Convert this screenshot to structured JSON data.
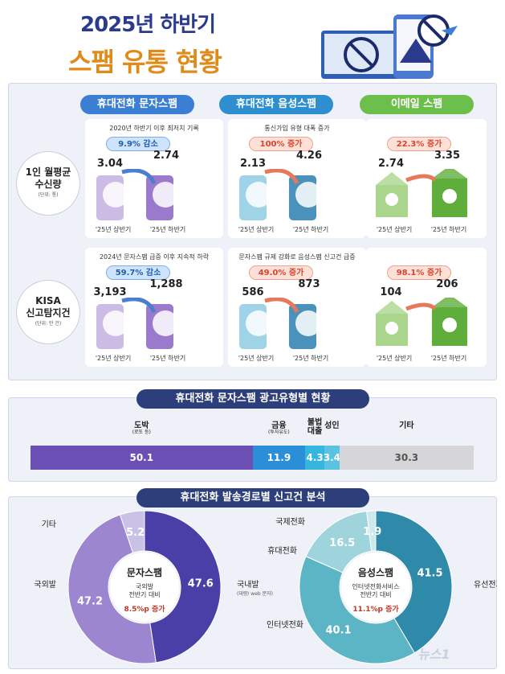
{
  "header": {
    "title_line1": "2025년 하반기",
    "title_line2": "스팸 유통 현황"
  },
  "columns": [
    {
      "label": "휴대전화 문자스팸",
      "color": "#3b7fd4"
    },
    {
      "label": "휴대전화 음성스팸",
      "color": "#2e8fd0"
    },
    {
      "label": "이메일 스팸",
      "color": "#6cbf4a"
    }
  ],
  "rows": [
    {
      "label": "1인 월평균\n수신량",
      "unit": "(단위: 통)",
      "cells": [
        {
          "subtitle": "2020년 하반기 이후 최저치 기록",
          "change": "9.9% 감소",
          "direction": "down",
          "h1": 3.04,
          "h2": 2.74
        },
        {
          "subtitle": "통신가입 유형 대폭 증가",
          "change": "100% 증가",
          "direction": "up",
          "h1": 2.13,
          "h2": 4.26
        },
        {
          "subtitle": "",
          "change": "22.3% 증가",
          "direction": "up",
          "h1": 2.74,
          "h2": 3.35
        }
      ]
    },
    {
      "label": "KISA\n신고탐지건",
      "unit": "(단위: 만 건)",
      "cells": [
        {
          "subtitle": "2024년 문자스팸 급증 이후 지속적 하락",
          "change": "59.7% 감소",
          "direction": "down",
          "h1": "3,193",
          "h2": "1,288"
        },
        {
          "subtitle": "문자스팸 규제 강화로 음성스팸 신고건 급증",
          "change": "49.0% 증가",
          "direction": "up",
          "h1": 586,
          "h2": 873
        },
        {
          "subtitle": "",
          "change": "98.1% 증가",
          "direction": "up",
          "h1": 104,
          "h2": 206
        }
      ]
    }
  ],
  "period_labels": [
    "'25년 상반기",
    "'25년 하반기"
  ],
  "section2_title": "휴대전화 문자스팸 광고유형별 현황",
  "section3_title": "휴대전화 발송경로별 신고건 분석",
  "chart_data": [
    {
      "type": "bar",
      "title": "휴대전화 문자스팸 광고유형별 현황",
      "categories": [
        {
          "name": "도박",
          "note": "(로또 등)",
          "value": 50.1,
          "color": "#6b4fb5"
        },
        {
          "name": "금융",
          "note": "(투자유도)",
          "value": 11.9,
          "color": "#2a8fd8"
        },
        {
          "name": "불법\n대출",
          "note": "",
          "value": 4.3,
          "color": "#35b6df"
        },
        {
          "name": "성인",
          "note": "",
          "value": 3.4,
          "color": "#5ac3e3"
        },
        {
          "name": "기타",
          "note": "",
          "value": 30.3,
          "color": "#d6d6d8"
        }
      ]
    },
    {
      "type": "pie",
      "center_title": "문자스팸",
      "center_text": "국외발\n전반기 대비",
      "center_highlight": "8.5%p 증가",
      "slices": [
        {
          "name": "국내발",
          "note": "(대량/ web 문자)",
          "value": 47.6,
          "color": "#4a3fa6"
        },
        {
          "name": "국외발",
          "note": "",
          "value": 47.2,
          "color": "#9b86cf"
        },
        {
          "name": "기타",
          "note": "",
          "value": 5.2,
          "color": "#c9c2e6"
        }
      ]
    },
    {
      "type": "pie",
      "center_title": "음성스팸",
      "center_text": "인터넷전화서비스\n전반기 대비",
      "center_highlight": "11.1%p 증가",
      "slices": [
        {
          "name": "유선전화",
          "note": "",
          "value": 41.5,
          "color": "#2e8aa8"
        },
        {
          "name": "인터넷전화",
          "note": "",
          "value": 40.1,
          "color": "#5cb5c4"
        },
        {
          "name": "휴대전화",
          "note": "",
          "value": 16.5,
          "color": "#9fd4dc"
        },
        {
          "name": "국제전화",
          "note": "",
          "value": 1.9,
          "color": "#cde9ee"
        }
      ]
    }
  ],
  "watermark": "뉴스1"
}
